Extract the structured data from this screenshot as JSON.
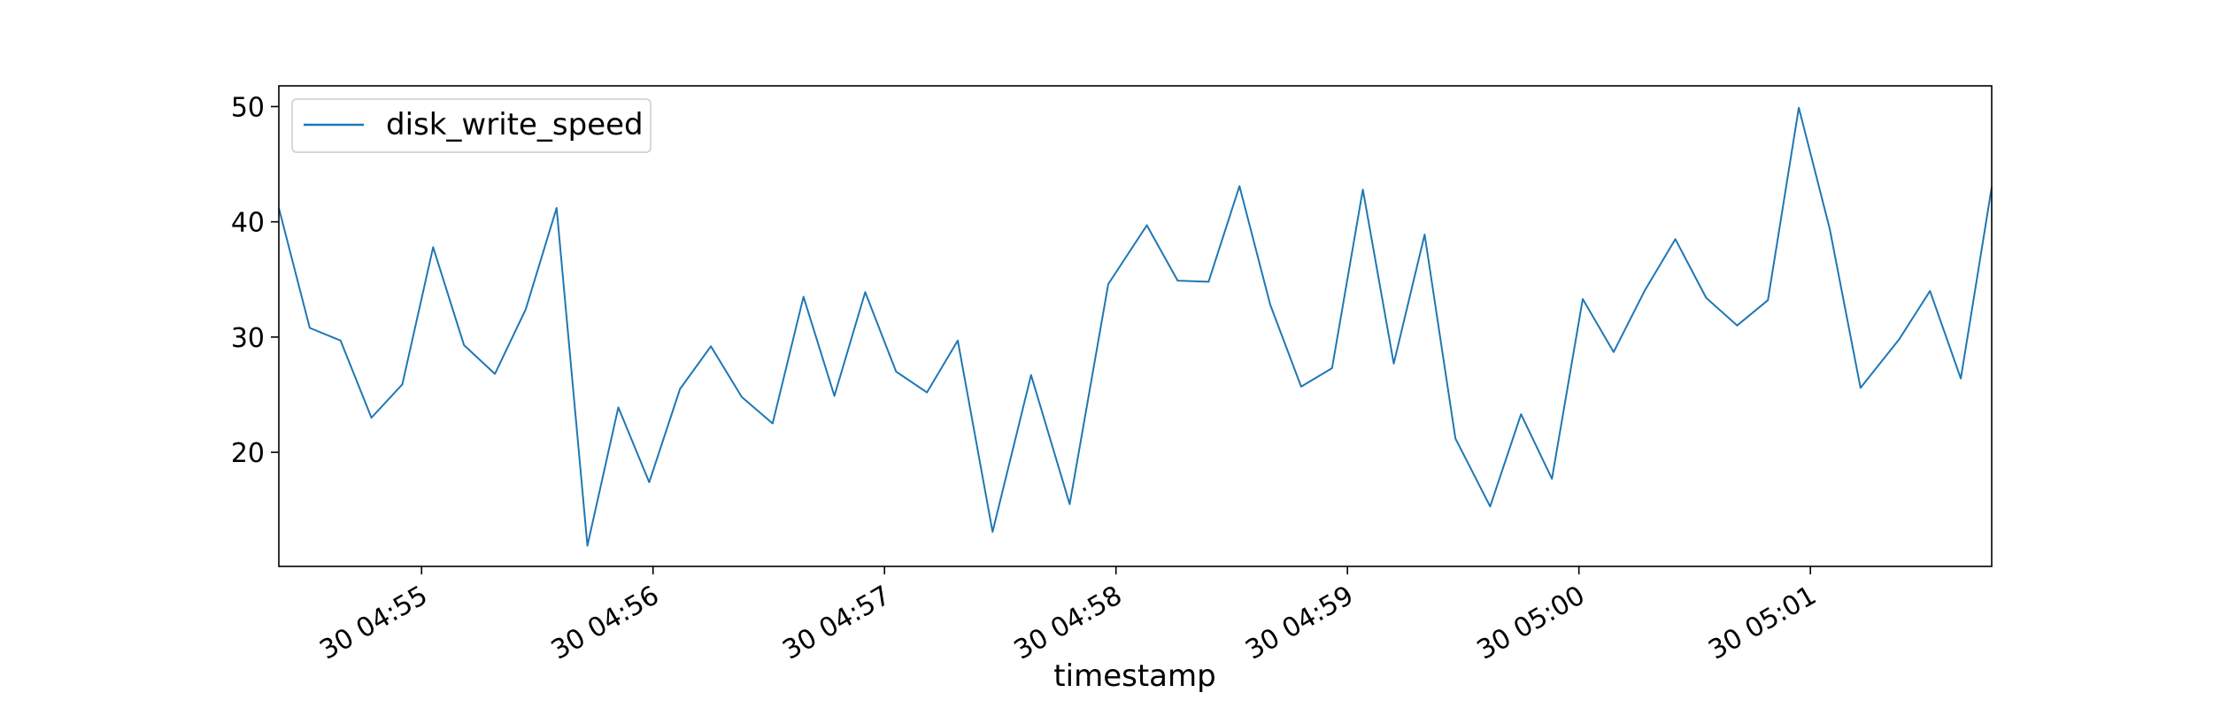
{
  "chart_data": {
    "type": "line",
    "title": "",
    "xlabel": "timestamp",
    "ylabel": "",
    "grid": false,
    "legend_position": "top-left",
    "line_color": "#1f77b4",
    "x_range": [
      "30 04:54:23",
      "30 05:01:47"
    ],
    "ylim": [
      10.1,
      51.8
    ],
    "y_ticks": [
      20,
      30,
      40,
      50
    ],
    "x_ticks": [
      {
        "time": "30 04:55:00",
        "label": "30 04:55"
      },
      {
        "time": "30 04:56:00",
        "label": "30 04:56"
      },
      {
        "time": "30 04:57:00",
        "label": "30 04:57"
      },
      {
        "time": "30 04:58:00",
        "label": "30 04:58"
      },
      {
        "time": "30 04:59:00",
        "label": "30 04:59"
      },
      {
        "time": "30 05:00:00",
        "label": "30 05:00"
      },
      {
        "time": "30 05:01:00",
        "label": "30 05:01"
      }
    ],
    "series": [
      {
        "name": "disk_write_speed",
        "x": [
          "30 04:54:23",
          "30 04:54:31",
          "30 04:54:39",
          "30 04:54:47",
          "30 04:54:55",
          "30 04:55:03",
          "30 04:55:11",
          "30 04:55:19",
          "30 04:55:27",
          "30 04:55:35",
          "30 04:55:43",
          "30 04:55:51",
          "30 04:55:59",
          "30 04:56:07",
          "30 04:56:15",
          "30 04:56:23",
          "30 04:56:31",
          "30 04:56:39",
          "30 04:56:47",
          "30 04:56:55",
          "30 04:57:03",
          "30 04:57:11",
          "30 04:57:19",
          "30 04:57:28",
          "30 04:57:38",
          "30 04:57:48",
          "30 04:57:58",
          "30 04:58:08",
          "30 04:58:16",
          "30 04:58:24",
          "30 04:58:32",
          "30 04:58:40",
          "30 04:58:48",
          "30 04:58:56",
          "30 04:59:04",
          "30 04:59:12",
          "30 04:59:20",
          "30 04:59:28",
          "30 04:59:37",
          "30 04:59:45",
          "30 04:59:53",
          "30 05:00:01",
          "30 05:00:09",
          "30 05:00:17",
          "30 05:00:25",
          "30 05:00:33",
          "30 05:00:41",
          "30 05:00:49",
          "30 05:00:57",
          "30 05:01:05",
          "30 05:01:13",
          "30 05:01:23",
          "30 05:01:31",
          "30 05:01:39",
          "30 05:01:47"
        ],
        "y": [
          41.2,
          30.8,
          29.7,
          23.0,
          25.9,
          37.8,
          29.3,
          26.8,
          32.4,
          41.2,
          11.9,
          23.9,
          17.4,
          25.5,
          29.2,
          24.8,
          22.5,
          33.5,
          24.9,
          33.9,
          27.0,
          25.2,
          29.7,
          13.1,
          26.7,
          15.5,
          34.6,
          39.7,
          34.9,
          34.8,
          43.1,
          32.8,
          25.7,
          27.3,
          42.8,
          27.7,
          38.9,
          21.2,
          15.3,
          23.3,
          17.7,
          33.3,
          28.7,
          34.0,
          38.5,
          33.4,
          31.0,
          33.2,
          49.9,
          39.4,
          25.6,
          29.8,
          34.0,
          26.4,
          43.0
        ]
      }
    ]
  }
}
